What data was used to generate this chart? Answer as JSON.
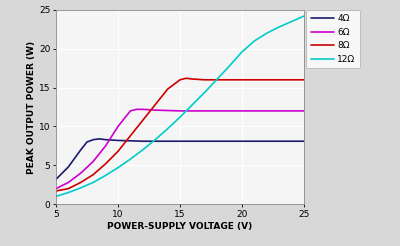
{
  "title": "",
  "xlabel": "POWER-SUPPLY VOLTAGE (V)",
  "ylabel": "PEAK OUTPUT POWER (W)",
  "xlim": [
    5,
    25
  ],
  "ylim": [
    0,
    25
  ],
  "xticks": [
    5,
    10,
    15,
    20,
    25
  ],
  "yticks": [
    0,
    5,
    10,
    15,
    20,
    25
  ],
  "plot_bg": "#f5f5f5",
  "fig_bg": "#d8d8d8",
  "grid_color": "#ffffff",
  "series": [
    {
      "label": "4Ω",
      "color": "#1a1a6e",
      "x": [
        5,
        6,
        7,
        7.5,
        8.0,
        8.5,
        9,
        10,
        12,
        15,
        20,
        25
      ],
      "y": [
        3.2,
        4.8,
        7.0,
        8.0,
        8.3,
        8.4,
        8.3,
        8.2,
        8.1,
        8.1,
        8.1,
        8.1
      ]
    },
    {
      "label": "6Ω",
      "color": "#cc00cc",
      "x": [
        5,
        6,
        7,
        8,
        9,
        10,
        11,
        11.5,
        12,
        13,
        15,
        20,
        25
      ],
      "y": [
        2.0,
        2.8,
        4.0,
        5.5,
        7.5,
        10.0,
        12.0,
        12.2,
        12.2,
        12.1,
        12.0,
        12.0,
        12.0
      ]
    },
    {
      "label": "8Ω",
      "color": "#cc0000",
      "x": [
        5,
        6,
        7,
        8,
        9,
        10,
        11,
        12,
        13,
        14,
        15,
        15.5,
        16,
        17,
        20,
        25
      ],
      "y": [
        1.7,
        2.0,
        2.8,
        3.8,
        5.2,
        6.8,
        8.8,
        10.8,
        12.8,
        14.8,
        16.0,
        16.2,
        16.1,
        16.0,
        16.0,
        16.0
      ]
    },
    {
      "label": "12Ω",
      "color": "#00cccc",
      "x": [
        5,
        6,
        7,
        8,
        9,
        10,
        11,
        12,
        13,
        14,
        15,
        16,
        17,
        18,
        19,
        20,
        21,
        22,
        23,
        24,
        25
      ],
      "y": [
        1.0,
        1.5,
        2.1,
        2.8,
        3.7,
        4.7,
        5.8,
        7.0,
        8.3,
        9.7,
        11.2,
        12.8,
        14.4,
        16.1,
        17.8,
        19.6,
        21.0,
        22.0,
        22.8,
        23.5,
        24.2
      ]
    }
  ],
  "figsize": [
    4.0,
    2.46
  ],
  "dpi": 100
}
